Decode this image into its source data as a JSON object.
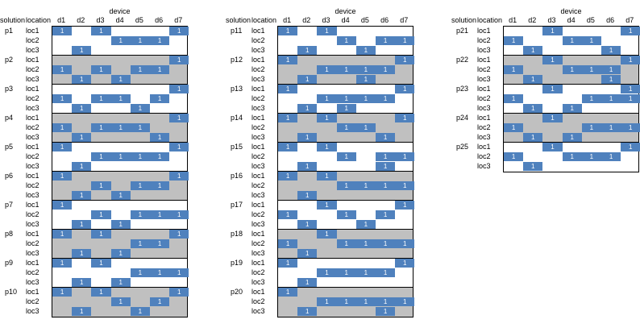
{
  "header": {
    "device_label": "device",
    "solution_label": "solution",
    "location_label": "location",
    "devices": [
      "d1",
      "d2",
      "d3",
      "d4",
      "d5",
      "d6",
      "d7"
    ]
  },
  "cell_value": "1",
  "location_names": [
    "loc1",
    "loc2",
    "loc3"
  ],
  "panels": [
    {
      "solutions": [
        {
          "name": "p1",
          "shaded": false,
          "rows": [
            [
              1,
              0,
              1,
              0,
              0,
              0,
              1
            ],
            [
              0,
              0,
              0,
              1,
              1,
              1,
              0
            ],
            [
              0,
              1,
              0,
              0,
              0,
              0,
              0
            ]
          ]
        },
        {
          "name": "p2",
          "shaded": true,
          "rows": [
            [
              0,
              0,
              0,
              0,
              0,
              0,
              1
            ],
            [
              1,
              0,
              1,
              0,
              1,
              1,
              0
            ],
            [
              0,
              1,
              0,
              1,
              0,
              0,
              0
            ]
          ]
        },
        {
          "name": "p3",
          "shaded": false,
          "rows": [
            [
              0,
              0,
              0,
              0,
              0,
              0,
              1
            ],
            [
              1,
              0,
              1,
              1,
              0,
              1,
              0
            ],
            [
              0,
              1,
              0,
              0,
              1,
              0,
              0
            ]
          ]
        },
        {
          "name": "p4",
          "shaded": true,
          "rows": [
            [
              0,
              0,
              0,
              0,
              0,
              0,
              1
            ],
            [
              1,
              0,
              1,
              1,
              1,
              0,
              0
            ],
            [
              0,
              1,
              0,
              0,
              0,
              1,
              0
            ]
          ]
        },
        {
          "name": "p5",
          "shaded": false,
          "rows": [
            [
              1,
              0,
              0,
              0,
              0,
              0,
              1
            ],
            [
              0,
              0,
              1,
              1,
              1,
              1,
              0
            ],
            [
              0,
              1,
              0,
              0,
              0,
              0,
              0
            ]
          ]
        },
        {
          "name": "p6",
          "shaded": true,
          "rows": [
            [
              1,
              0,
              0,
              0,
              0,
              0,
              1
            ],
            [
              0,
              0,
              1,
              0,
              1,
              1,
              0
            ],
            [
              0,
              1,
              0,
              1,
              0,
              0,
              0
            ]
          ]
        },
        {
          "name": "p7",
          "shaded": false,
          "rows": [
            [
              1,
              0,
              0,
              0,
              0,
              0,
              0
            ],
            [
              0,
              0,
              1,
              0,
              1,
              1,
              1
            ],
            [
              0,
              1,
              0,
              1,
              0,
              0,
              0
            ]
          ]
        },
        {
          "name": "p8",
          "shaded": true,
          "rows": [
            [
              1,
              0,
              1,
              0,
              0,
              0,
              1
            ],
            [
              0,
              0,
              0,
              0,
              1,
              1,
              0
            ],
            [
              0,
              1,
              0,
              1,
              0,
              0,
              0
            ]
          ]
        },
        {
          "name": "p9",
          "shaded": false,
          "rows": [
            [
              1,
              0,
              1,
              0,
              0,
              0,
              0
            ],
            [
              0,
              0,
              0,
              0,
              1,
              1,
              1
            ],
            [
              0,
              1,
              0,
              1,
              0,
              0,
              0
            ]
          ]
        },
        {
          "name": "p10",
          "shaded": true,
          "rows": [
            [
              1,
              0,
              1,
              0,
              0,
              0,
              1
            ],
            [
              0,
              0,
              0,
              1,
              0,
              1,
              0
            ],
            [
              0,
              1,
              0,
              0,
              1,
              0,
              0
            ]
          ]
        }
      ]
    },
    {
      "solutions": [
        {
          "name": "p11",
          "shaded": false,
          "rows": [
            [
              1,
              0,
              1,
              0,
              0,
              0,
              0
            ],
            [
              0,
              0,
              0,
              1,
              0,
              1,
              1
            ],
            [
              0,
              1,
              0,
              0,
              1,
              0,
              0
            ]
          ]
        },
        {
          "name": "p12",
          "shaded": true,
          "rows": [
            [
              1,
              0,
              0,
              0,
              0,
              0,
              1
            ],
            [
              0,
              0,
              1,
              1,
              1,
              1,
              0
            ],
            [
              0,
              1,
              0,
              0,
              1,
              0,
              0
            ]
          ]
        },
        {
          "name": "p13",
          "shaded": false,
          "rows": [
            [
              1,
              0,
              0,
              0,
              0,
              0,
              1
            ],
            [
              0,
              0,
              1,
              1,
              1,
              1,
              0
            ],
            [
              0,
              1,
              0,
              1,
              0,
              0,
              0
            ]
          ]
        },
        {
          "name": "p14",
          "shaded": true,
          "rows": [
            [
              1,
              0,
              1,
              0,
              0,
              0,
              1
            ],
            [
              0,
              0,
              0,
              1,
              1,
              0,
              0
            ],
            [
              0,
              1,
              0,
              0,
              0,
              1,
              0
            ]
          ]
        },
        {
          "name": "p15",
          "shaded": false,
          "rows": [
            [
              1,
              0,
              1,
              0,
              0,
              0,
              0
            ],
            [
              0,
              0,
              0,
              1,
              0,
              1,
              1
            ],
            [
              0,
              1,
              0,
              0,
              0,
              1,
              0
            ]
          ]
        },
        {
          "name": "p16",
          "shaded": true,
          "rows": [
            [
              1,
              0,
              1,
              0,
              0,
              0,
              0
            ],
            [
              0,
              0,
              0,
              1,
              1,
              1,
              1
            ],
            [
              0,
              1,
              0,
              0,
              0,
              0,
              0
            ]
          ]
        },
        {
          "name": "p17",
          "shaded": false,
          "rows": [
            [
              0,
              0,
              1,
              0,
              0,
              0,
              1
            ],
            [
              1,
              0,
              0,
              1,
              0,
              1,
              0
            ],
            [
              0,
              1,
              0,
              0,
              1,
              0,
              0
            ]
          ]
        },
        {
          "name": "p18",
          "shaded": true,
          "rows": [
            [
              0,
              0,
              1,
              0,
              0,
              0,
              0
            ],
            [
              1,
              0,
              0,
              1,
              1,
              1,
              1
            ],
            [
              0,
              1,
              0,
              0,
              0,
              0,
              0
            ]
          ]
        },
        {
          "name": "p19",
          "shaded": false,
          "rows": [
            [
              1,
              0,
              0,
              0,
              0,
              0,
              1
            ],
            [
              0,
              0,
              1,
              1,
              1,
              1,
              0
            ],
            [
              0,
              1,
              0,
              0,
              0,
              0,
              0
            ]
          ]
        },
        {
          "name": "p20",
          "shaded": true,
          "rows": [
            [
              1,
              0,
              0,
              0,
              0,
              0,
              0
            ],
            [
              0,
              0,
              1,
              1,
              1,
              1,
              1
            ],
            [
              0,
              1,
              0,
              0,
              0,
              1,
              0
            ]
          ]
        }
      ]
    },
    {
      "solutions": [
        {
          "name": "p21",
          "shaded": false,
          "rows": [
            [
              0,
              0,
              1,
              0,
              0,
              0,
              1
            ],
            [
              1,
              0,
              0,
              1,
              1,
              0,
              0
            ],
            [
              0,
              1,
              0,
              0,
              0,
              1,
              0
            ]
          ]
        },
        {
          "name": "p22",
          "shaded": true,
          "rows": [
            [
              0,
              0,
              1,
              0,
              0,
              0,
              1
            ],
            [
              1,
              0,
              0,
              1,
              1,
              1,
              0
            ],
            [
              0,
              1,
              0,
              0,
              0,
              1,
              0
            ]
          ]
        },
        {
          "name": "p23",
          "shaded": false,
          "rows": [
            [
              0,
              0,
              1,
              0,
              0,
              0,
              1
            ],
            [
              1,
              0,
              0,
              0,
              1,
              1,
              1
            ],
            [
              0,
              1,
              0,
              1,
              0,
              0,
              0
            ]
          ]
        },
        {
          "name": "p24",
          "shaded": true,
          "rows": [
            [
              0,
              0,
              1,
              0,
              0,
              0,
              0
            ],
            [
              1,
              0,
              0,
              0,
              1,
              1,
              1
            ],
            [
              0,
              1,
              0,
              1,
              0,
              0,
              0
            ]
          ]
        },
        {
          "name": "p25",
          "shaded": false,
          "rows": [
            [
              0,
              0,
              1,
              0,
              0,
              0,
              1
            ],
            [
              1,
              0,
              0,
              1,
              1,
              1,
              0
            ],
            [
              0,
              1,
              0,
              0,
              0,
              0,
              0
            ]
          ]
        }
      ]
    }
  ]
}
